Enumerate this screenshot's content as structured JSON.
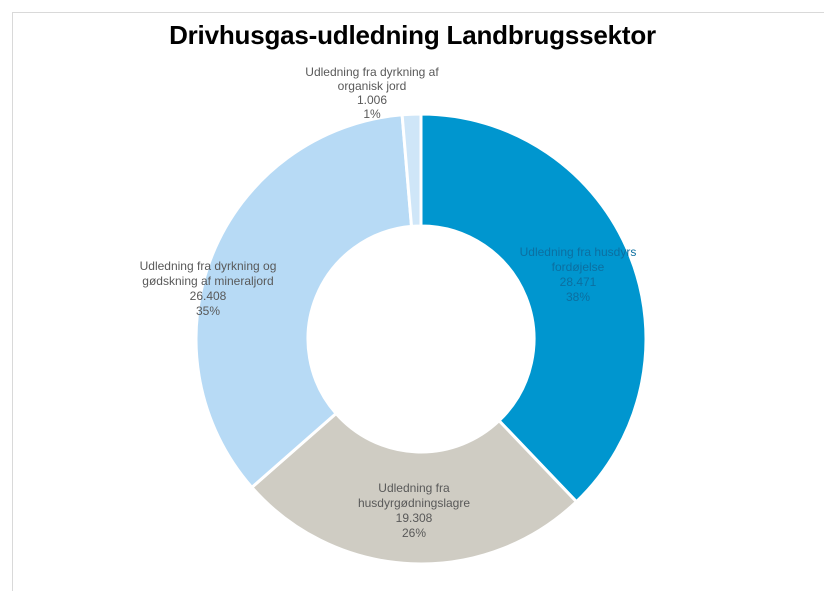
{
  "chart_data": {
    "type": "pie",
    "variant": "donut",
    "title": "Drivhusgas-udledning Landbrugssektor",
    "series": [
      {
        "name": "",
        "slices": [
          {
            "label_lines": [
              "Udledning fra husdyrs",
              "fordøjelse"
            ],
            "value_text": "28.471",
            "value": 28471,
            "percent_text": "38%",
            "percent": 38,
            "color": "#0096CF",
            "label_color": "#0C6FA0"
          },
          {
            "label_lines": [
              "Udledning fra",
              "husdyrgødningslagre"
            ],
            "value_text": "19.308",
            "value": 19308,
            "percent_text": "26%",
            "percent": 26,
            "color": "#CFCCC3",
            "label_color": "#595959"
          },
          {
            "label_lines": [
              "Udledning fra dyrkning og",
              "gødskning af mineraljord"
            ],
            "value_text": "26.408",
            "value": 26408,
            "percent_text": "35%",
            "percent": 35,
            "color": "#B7DAF5",
            "label_color": "#595959"
          },
          {
            "label_lines": [
              "Udledning fra dyrkning af",
              "organisk jord"
            ],
            "value_text": "1.006",
            "value": 1006,
            "percent_text": "1%",
            "percent": 1,
            "color": "#CFE6F8",
            "label_color": "#595959"
          }
        ]
      }
    ],
    "legend": "none",
    "start": "top",
    "direction": "clockwise"
  }
}
